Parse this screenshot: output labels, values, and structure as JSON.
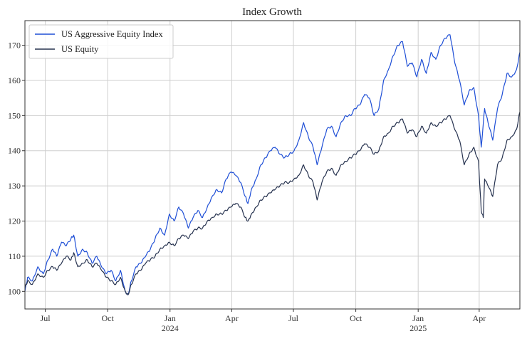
{
  "chart_data": {
    "type": "line",
    "title": "Index Growth",
    "xlabel": "",
    "ylabel": "",
    "x_range": [
      "2023-06-01",
      "2025-05-31"
    ],
    "ylim": [
      95,
      177
    ],
    "grid": true,
    "legend_position": "top-left",
    "y_ticks": [
      100,
      110,
      120,
      130,
      140,
      150,
      160,
      170
    ],
    "x_ticks": [
      {
        "date": "2023-07-01",
        "label": "Jul",
        "sublabel": ""
      },
      {
        "date": "2023-10-01",
        "label": "Oct",
        "sublabel": ""
      },
      {
        "date": "2024-01-01",
        "label": "Jan",
        "sublabel": "2024"
      },
      {
        "date": "2024-04-01",
        "label": "Apr",
        "sublabel": ""
      },
      {
        "date": "2024-07-01",
        "label": "Jul",
        "sublabel": ""
      },
      {
        "date": "2024-10-01",
        "label": "Oct",
        "sublabel": ""
      },
      {
        "date": "2025-01-01",
        "label": "Jan",
        "sublabel": "2025"
      },
      {
        "date": "2025-04-01",
        "label": "Apr",
        "sublabel": ""
      }
    ],
    "series": [
      {
        "name": "US Aggressive Equity Index",
        "color": "#1f4fd6",
        "points": [
          [
            "2023-06-01",
            100
          ],
          [
            "2023-06-05",
            104
          ],
          [
            "2023-06-12",
            103
          ],
          [
            "2023-06-20",
            107
          ],
          [
            "2023-06-28",
            105
          ],
          [
            "2023-07-05",
            109
          ],
          [
            "2023-07-12",
            112
          ],
          [
            "2023-07-18",
            110
          ],
          [
            "2023-07-25",
            114
          ],
          [
            "2023-08-01",
            113
          ],
          [
            "2023-08-08",
            115
          ],
          [
            "2023-08-12",
            116
          ],
          [
            "2023-08-18",
            110
          ],
          [
            "2023-08-25",
            112
          ],
          [
            "2023-09-01",
            111
          ],
          [
            "2023-09-08",
            108
          ],
          [
            "2023-09-15",
            110
          ],
          [
            "2023-09-22",
            107
          ],
          [
            "2023-09-29",
            105
          ],
          [
            "2023-10-06",
            106
          ],
          [
            "2023-10-13",
            103
          ],
          [
            "2023-10-20",
            106
          ],
          [
            "2023-10-27",
            100
          ],
          [
            "2023-10-31",
            99
          ],
          [
            "2023-11-05",
            103
          ],
          [
            "2023-11-12",
            107
          ],
          [
            "2023-11-19",
            108
          ],
          [
            "2023-11-26",
            110
          ],
          [
            "2023-12-03",
            112
          ],
          [
            "2023-12-10",
            115
          ],
          [
            "2023-12-17",
            118
          ],
          [
            "2023-12-24",
            116
          ],
          [
            "2023-12-31",
            122
          ],
          [
            "2024-01-07",
            120
          ],
          [
            "2024-01-14",
            124
          ],
          [
            "2024-01-21",
            122
          ],
          [
            "2024-01-28",
            118
          ],
          [
            "2024-02-04",
            121
          ],
          [
            "2024-02-11",
            123
          ],
          [
            "2024-02-18",
            121
          ],
          [
            "2024-02-25",
            124
          ],
          [
            "2024-03-03",
            127
          ],
          [
            "2024-03-10",
            129
          ],
          [
            "2024-03-17",
            128
          ],
          [
            "2024-03-24",
            132
          ],
          [
            "2024-03-31",
            134
          ],
          [
            "2024-04-07",
            133
          ],
          [
            "2024-04-14",
            131
          ],
          [
            "2024-04-21",
            127
          ],
          [
            "2024-04-25",
            125
          ],
          [
            "2024-04-30",
            129
          ],
          [
            "2024-05-07",
            132
          ],
          [
            "2024-05-14",
            136
          ],
          [
            "2024-05-21",
            138
          ],
          [
            "2024-05-28",
            140
          ],
          [
            "2024-06-04",
            141
          ],
          [
            "2024-06-11",
            139
          ],
          [
            "2024-06-18",
            138
          ],
          [
            "2024-06-25",
            139
          ],
          [
            "2024-07-02",
            140
          ],
          [
            "2024-07-09",
            143
          ],
          [
            "2024-07-16",
            148
          ],
          [
            "2024-07-23",
            144
          ],
          [
            "2024-07-30",
            141
          ],
          [
            "2024-08-05",
            136
          ],
          [
            "2024-08-12",
            141
          ],
          [
            "2024-08-19",
            146
          ],
          [
            "2024-08-26",
            147
          ],
          [
            "2024-09-02",
            144
          ],
          [
            "2024-09-09",
            148
          ],
          [
            "2024-09-16",
            150
          ],
          [
            "2024-09-23",
            150
          ],
          [
            "2024-09-30",
            152
          ],
          [
            "2024-10-07",
            153
          ],
          [
            "2024-10-14",
            156
          ],
          [
            "2024-10-21",
            155
          ],
          [
            "2024-10-28",
            150
          ],
          [
            "2024-11-04",
            152
          ],
          [
            "2024-11-11",
            160
          ],
          [
            "2024-11-18",
            163
          ],
          [
            "2024-11-25",
            167
          ],
          [
            "2024-12-02",
            170
          ],
          [
            "2024-12-09",
            171
          ],
          [
            "2024-12-16",
            164
          ],
          [
            "2024-12-23",
            165
          ],
          [
            "2024-12-30",
            161
          ],
          [
            "2025-01-06",
            166
          ],
          [
            "2025-01-13",
            162
          ],
          [
            "2025-01-20",
            168
          ],
          [
            "2025-01-27",
            166
          ],
          [
            "2025-02-03",
            170
          ],
          [
            "2025-02-10",
            172
          ],
          [
            "2025-02-17",
            173
          ],
          [
            "2025-02-24",
            165
          ],
          [
            "2025-03-03",
            160
          ],
          [
            "2025-03-10",
            153
          ],
          [
            "2025-03-17",
            157
          ],
          [
            "2025-03-24",
            158
          ],
          [
            "2025-03-31",
            150
          ],
          [
            "2025-04-04",
            141
          ],
          [
            "2025-04-09",
            152
          ],
          [
            "2025-04-14",
            148
          ],
          [
            "2025-04-21",
            143
          ],
          [
            "2025-04-28",
            152
          ],
          [
            "2025-05-05",
            156
          ],
          [
            "2025-05-12",
            162
          ],
          [
            "2025-05-19",
            161
          ],
          [
            "2025-05-26",
            163
          ],
          [
            "2025-05-31",
            168
          ]
        ]
      },
      {
        "name": "US Equity",
        "color": "#26324f",
        "points": [
          [
            "2023-06-01",
            101
          ],
          [
            "2023-06-05",
            103
          ],
          [
            "2023-06-12",
            102
          ],
          [
            "2023-06-20",
            105
          ],
          [
            "2023-06-28",
            104
          ],
          [
            "2023-07-05",
            106
          ],
          [
            "2023-07-12",
            107
          ],
          [
            "2023-07-18",
            106
          ],
          [
            "2023-07-25",
            108
          ],
          [
            "2023-08-01",
            110
          ],
          [
            "2023-08-08",
            109
          ],
          [
            "2023-08-12",
            111
          ],
          [
            "2023-08-18",
            107
          ],
          [
            "2023-08-25",
            108
          ],
          [
            "2023-09-01",
            109
          ],
          [
            "2023-09-08",
            107
          ],
          [
            "2023-09-15",
            108
          ],
          [
            "2023-09-22",
            106
          ],
          [
            "2023-09-29",
            104
          ],
          [
            "2023-10-06",
            103
          ],
          [
            "2023-10-13",
            102
          ],
          [
            "2023-10-20",
            104
          ],
          [
            "2023-10-27",
            100
          ],
          [
            "2023-10-31",
            99
          ],
          [
            "2023-11-05",
            102
          ],
          [
            "2023-11-12",
            105
          ],
          [
            "2023-11-19",
            106
          ],
          [
            "2023-11-26",
            108
          ],
          [
            "2023-12-03",
            109
          ],
          [
            "2023-12-10",
            110
          ],
          [
            "2023-12-17",
            112
          ],
          [
            "2023-12-24",
            113
          ],
          [
            "2023-12-31",
            114
          ],
          [
            "2024-01-07",
            113
          ],
          [
            "2024-01-14",
            115
          ],
          [
            "2024-01-21",
            116
          ],
          [
            "2024-01-28",
            115
          ],
          [
            "2024-02-04",
            117
          ],
          [
            "2024-02-11",
            118
          ],
          [
            "2024-02-18",
            118
          ],
          [
            "2024-02-25",
            120
          ],
          [
            "2024-03-03",
            121
          ],
          [
            "2024-03-10",
            122
          ],
          [
            "2024-03-17",
            122
          ],
          [
            "2024-03-24",
            123
          ],
          [
            "2024-03-31",
            124
          ],
          [
            "2024-04-07",
            125
          ],
          [
            "2024-04-14",
            124
          ],
          [
            "2024-04-21",
            121
          ],
          [
            "2024-04-25",
            120
          ],
          [
            "2024-04-30",
            122
          ],
          [
            "2024-05-07",
            124
          ],
          [
            "2024-05-14",
            126
          ],
          [
            "2024-05-21",
            127
          ],
          [
            "2024-05-28",
            128
          ],
          [
            "2024-06-04",
            129
          ],
          [
            "2024-06-11",
            130
          ],
          [
            "2024-06-18",
            131
          ],
          [
            "2024-06-25",
            131
          ],
          [
            "2024-07-02",
            132
          ],
          [
            "2024-07-09",
            133
          ],
          [
            "2024-07-16",
            136
          ],
          [
            "2024-07-23",
            133
          ],
          [
            "2024-07-30",
            131
          ],
          [
            "2024-08-05",
            126
          ],
          [
            "2024-08-12",
            131
          ],
          [
            "2024-08-19",
            134
          ],
          [
            "2024-08-26",
            135
          ],
          [
            "2024-09-02",
            133
          ],
          [
            "2024-09-09",
            136
          ],
          [
            "2024-09-16",
            137
          ],
          [
            "2024-09-23",
            138
          ],
          [
            "2024-09-30",
            139
          ],
          [
            "2024-10-07",
            140
          ],
          [
            "2024-10-14",
            142
          ],
          [
            "2024-10-21",
            141
          ],
          [
            "2024-10-28",
            139
          ],
          [
            "2024-11-04",
            140
          ],
          [
            "2024-11-11",
            144
          ],
          [
            "2024-11-18",
            145
          ],
          [
            "2024-11-25",
            147
          ],
          [
            "2024-12-02",
            148
          ],
          [
            "2024-12-09",
            149
          ],
          [
            "2024-12-16",
            145
          ],
          [
            "2024-12-23",
            146
          ],
          [
            "2024-12-30",
            144
          ],
          [
            "2025-01-06",
            147
          ],
          [
            "2025-01-13",
            145
          ],
          [
            "2025-01-20",
            148
          ],
          [
            "2025-01-27",
            147
          ],
          [
            "2025-02-03",
            148
          ],
          [
            "2025-02-10",
            149
          ],
          [
            "2025-02-17",
            150
          ],
          [
            "2025-02-24",
            146
          ],
          [
            "2025-03-03",
            143
          ],
          [
            "2025-03-10",
            136
          ],
          [
            "2025-03-17",
            139
          ],
          [
            "2025-03-24",
            141
          ],
          [
            "2025-03-31",
            137
          ],
          [
            "2025-04-04",
            123
          ],
          [
            "2025-04-07",
            121
          ],
          [
            "2025-04-09",
            132
          ],
          [
            "2025-04-14",
            130
          ],
          [
            "2025-04-21",
            127
          ],
          [
            "2025-04-28",
            136
          ],
          [
            "2025-05-05",
            138
          ],
          [
            "2025-05-12",
            143
          ],
          [
            "2025-05-19",
            144
          ],
          [
            "2025-05-26",
            146
          ],
          [
            "2025-05-31",
            151
          ]
        ]
      }
    ]
  }
}
